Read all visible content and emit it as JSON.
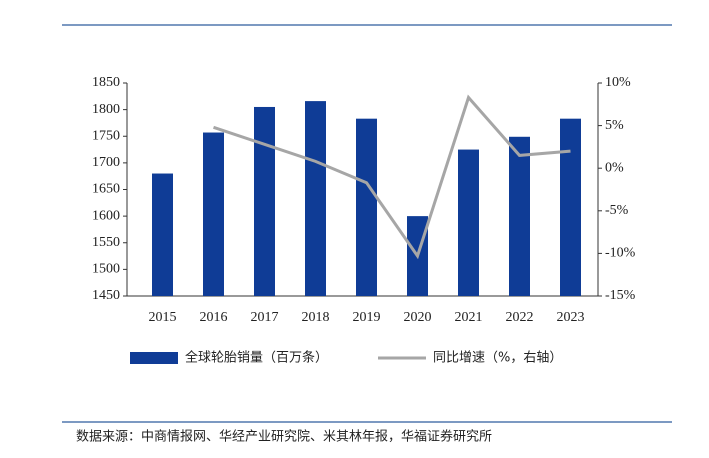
{
  "chart_data": {
    "type": "bar",
    "categories": [
      "2015",
      "2016",
      "2017",
      "2018",
      "2019",
      "2020",
      "2021",
      "2022",
      "2023"
    ],
    "series": [
      {
        "name": "全球轮胎销量（百万条）",
        "type": "bar",
        "color": "#0f3c96",
        "values": [
          1680,
          1757,
          1805,
          1816,
          1783,
          1600,
          1725,
          1749,
          1783
        ]
      },
      {
        "name": "同比增速（%，右轴）",
        "type": "line",
        "axis": "y2",
        "color": "#a6a6a6",
        "values": [
          null,
          4.8,
          2.8,
          0.8,
          -1.7,
          -10.3,
          8.3,
          1.5,
          2.0
        ]
      }
    ],
    "ylim": [
      1450,
      1850
    ],
    "yticks": [
      1450,
      1500,
      1550,
      1600,
      1650,
      1700,
      1750,
      1800,
      1850
    ],
    "y2lim": [
      -15,
      10
    ],
    "y2ticks": [
      {
        "value": -15,
        "label": "-15%"
      },
      {
        "value": -10,
        "label": "-10%"
      },
      {
        "value": -5,
        "label": "-5%"
      },
      {
        "value": 0,
        "label": "0%"
      },
      {
        "value": 5,
        "label": "5%"
      },
      {
        "value": 10,
        "label": "10%"
      }
    ],
    "source": "数据来源：中商情报网、华经产业研究院、米其林年报，华福证券研究所"
  }
}
